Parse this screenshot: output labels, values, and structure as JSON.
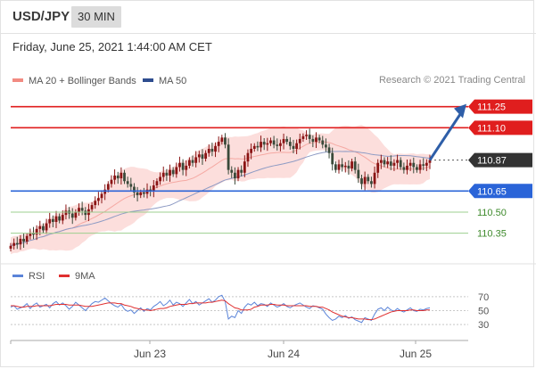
{
  "header": {
    "symbol": "USD/JPY",
    "timeframe": "30 MIN"
  },
  "subtitle": "Friday, June 25, 2021 1:44:00 AM CET",
  "legend": [
    {
      "label": "MA 20 + Bollinger Bands",
      "color": "#f28b82"
    },
    {
      "label": "MA 50",
      "color": "#2e4d8f"
    }
  ],
  "copyright": "Research © 2021 Trading Central",
  "colors": {
    "resistance": "#e01e1e",
    "support": "#2a64d8",
    "target": "#9ccf8f",
    "current": "#333333",
    "candle_up": "#8a1414",
    "candle_down": "#3a4a3a",
    "bollinger_fill": "#fbd3d0",
    "ma50": "#8e9bc4",
    "arrow": "#2e5ea8",
    "rsi": "#5b84d8",
    "rsi_ma": "#e03030"
  },
  "chart_data": [
    {
      "type": "candlestick",
      "title": "",
      "ylim": [
        110.17,
        111.4
      ],
      "x_tick_labels": [
        "Jun 23",
        "Jun 24",
        "Jun 25"
      ],
      "levels": [
        {
          "name": "resistance-2",
          "value": 111.25,
          "label": "111.25",
          "style": "resistance"
        },
        {
          "name": "resistance-1",
          "value": 111.1,
          "label": "111.10",
          "style": "resistance"
        },
        {
          "name": "current-price",
          "value": 110.87,
          "label": "110.87",
          "style": "current"
        },
        {
          "name": "support-1",
          "value": 110.65,
          "label": "110.65",
          "style": "support"
        },
        {
          "name": "target-1",
          "value": 110.5,
          "label": "110.50",
          "style": "target"
        },
        {
          "name": "target-2",
          "value": 110.35,
          "label": "110.35",
          "style": "target"
        }
      ],
      "close": [
        110.26,
        110.28,
        110.27,
        110.31,
        110.29,
        110.33,
        110.35,
        110.34,
        110.38,
        110.4,
        110.37,
        110.42,
        110.45,
        110.43,
        110.47,
        110.44,
        110.48,
        110.51,
        110.49,
        110.46,
        110.5,
        110.53,
        110.51,
        110.48,
        110.52,
        110.55,
        110.58,
        110.6,
        110.63,
        110.66,
        110.7,
        110.73,
        110.76,
        110.74,
        110.78,
        110.72,
        110.7,
        110.68,
        110.64,
        110.62,
        110.64,
        110.63,
        110.66,
        110.65,
        110.69,
        110.72,
        110.75,
        110.78,
        110.76,
        110.8,
        110.77,
        110.82,
        110.85,
        110.8,
        110.83,
        110.87,
        110.85,
        110.89,
        110.91,
        110.88,
        110.92,
        110.95,
        110.93,
        110.97,
        111.0,
        111.03,
        110.98,
        110.8,
        110.78,
        110.74,
        110.8,
        110.78,
        110.86,
        110.92,
        110.95,
        110.97,
        110.96,
        111.0,
        110.98,
        110.99,
        111.01,
        110.98,
        110.97,
        110.99,
        111.02,
        111.0,
        110.97,
        110.95,
        110.99,
        111.02,
        111.04,
        111.05,
        111.02,
        111.0,
        111.03,
        111.01,
        110.98,
        110.96,
        110.92,
        110.84,
        110.8,
        110.84,
        110.82,
        110.83,
        110.81,
        110.86,
        110.8,
        110.74,
        110.7,
        110.75,
        110.72,
        110.7,
        110.78,
        110.85,
        110.87,
        110.84,
        110.86,
        110.83,
        110.85,
        110.87,
        110.82,
        110.8,
        110.83,
        110.85,
        110.82,
        110.8,
        110.84,
        110.83,
        110.85,
        110.87
      ],
      "projection": {
        "from": 110.87,
        "to": 111.25
      }
    },
    {
      "type": "line",
      "title": "",
      "series_labels": [
        "RSI",
        "9MA"
      ],
      "ylim": [
        20,
        80
      ],
      "y_ticks": [
        70,
        50,
        30
      ],
      "rsi": [
        55,
        57,
        52,
        54,
        56,
        60,
        53,
        58,
        61,
        55,
        57,
        59,
        54,
        60,
        63,
        58,
        61,
        57,
        52,
        56,
        62,
        58,
        54,
        50,
        55,
        60,
        63,
        62,
        65,
        68,
        64,
        60,
        57,
        55,
        59,
        52,
        49,
        51,
        46,
        50,
        54,
        49,
        53,
        51,
        56,
        59,
        63,
        57,
        60,
        65,
        58,
        62,
        60,
        56,
        61,
        66,
        60,
        63,
        58,
        61,
        64,
        67,
        62,
        65,
        70,
        72,
        63,
        38,
        42,
        40,
        50,
        46,
        55,
        60,
        58,
        62,
        57,
        60,
        59,
        56,
        61,
        58,
        55,
        57,
        60,
        56,
        54,
        57,
        59,
        61,
        58,
        55,
        53,
        57,
        56,
        54,
        52,
        45,
        40,
        36,
        38,
        42,
        40,
        43,
        39,
        41,
        37,
        35,
        33,
        40,
        38,
        36,
        45,
        52,
        54,
        50,
        55,
        51,
        49,
        53,
        50,
        48,
        51,
        54,
        50,
        49,
        52,
        51,
        53,
        54
      ],
      "rsi_ma": [
        57,
        57,
        56,
        55,
        55,
        56,
        56,
        56,
        57,
        57,
        57,
        57,
        57,
        58,
        59,
        59,
        59,
        59,
        58,
        58,
        58,
        58,
        57,
        56,
        56,
        56,
        57,
        58,
        59,
        60,
        61,
        61,
        61,
        60,
        60,
        58,
        57,
        56,
        54,
        53,
        52,
        51,
        51,
        50,
        51,
        52,
        53,
        53,
        54,
        56,
        57,
        58,
        59,
        59,
        59,
        60,
        60,
        61,
        61,
        61,
        61,
        62,
        62,
        63,
        64,
        65,
        64,
        60,
        57,
        54,
        53,
        51,
        51,
        51,
        52,
        55,
        56,
        58,
        58,
        58,
        59,
        59,
        58,
        58,
        58,
        57,
        57,
        57,
        57,
        57,
        57,
        57,
        56,
        56,
        56,
        55,
        55,
        53,
        51,
        48,
        46,
        44,
        42,
        41,
        40,
        40,
        39,
        38,
        38,
        38,
        37,
        37,
        38,
        40,
        42,
        44,
        46,
        48,
        49,
        50,
        50,
        50,
        50,
        51,
        51,
        50,
        50,
        50,
        51,
        51
      ]
    }
  ]
}
